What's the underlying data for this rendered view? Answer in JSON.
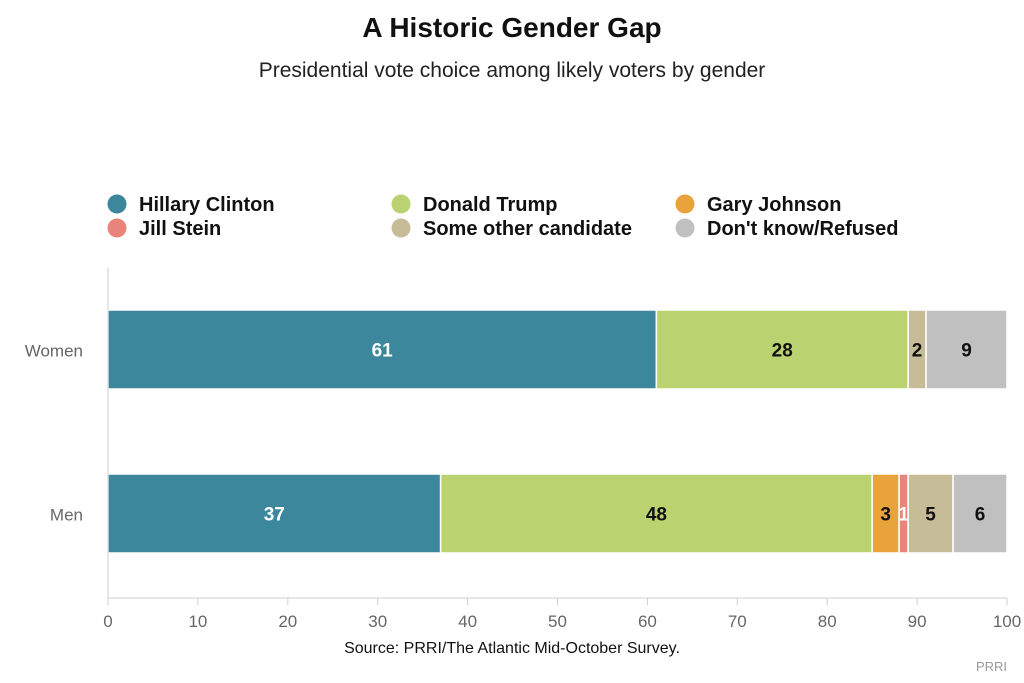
{
  "title": "A Historic Gender Gap",
  "subtitle": "Presidential vote choice among likely voters by gender",
  "source": "Source: PRRI/The Atlantic Mid-October Survey.",
  "credit": "PRRI",
  "chart_data": {
    "type": "bar",
    "orientation": "horizontal",
    "stacked": true,
    "categories": [
      "Women",
      "Men"
    ],
    "series": [
      {
        "name": "Hillary Clinton",
        "color": "#3d879c",
        "label_color": "#ffffff",
        "values": [
          61,
          37
        ]
      },
      {
        "name": "Donald Trump",
        "color": "#bad270",
        "label_color": "#111111",
        "values": [
          28,
          48
        ]
      },
      {
        "name": "Gary Johnson",
        "color": "#e8a33d",
        "label_color": "#111111",
        "values": [
          0,
          3
        ]
      },
      {
        "name": "Jill Stein",
        "color": "#e8847b",
        "label_color": "#ffffff",
        "values": [
          0,
          1
        ]
      },
      {
        "name": "Some other candidate",
        "color": "#c6bc98",
        "label_color": "#111111",
        "values": [
          2,
          5
        ]
      },
      {
        "name": "Don't know/Refused",
        "color": "#c0c0c0",
        "label_color": "#111111",
        "values": [
          9,
          6
        ]
      }
    ],
    "xlim": [
      0,
      100
    ],
    "xticks": [
      0,
      10,
      20,
      30,
      40,
      50,
      60,
      70,
      80,
      90,
      100
    ],
    "xlabel": "",
    "ylabel": "",
    "grid": false,
    "legend_position": "top"
  }
}
